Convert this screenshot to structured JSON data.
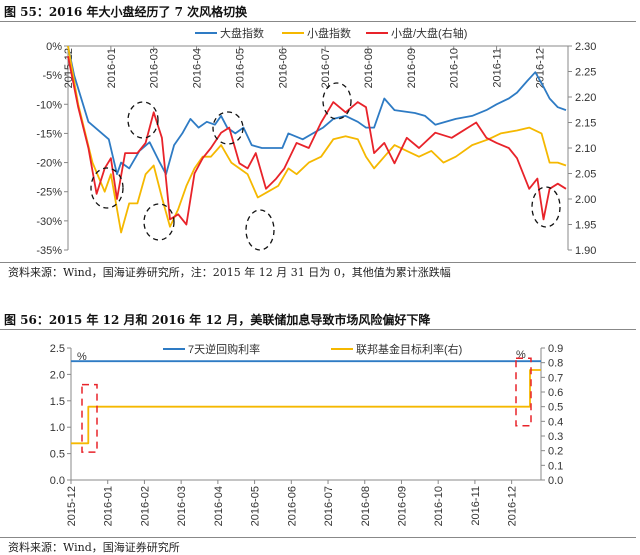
{
  "figure55": {
    "title": "图 55：2016 年大小盘经历了 7 次风格切换",
    "source": "资料来源：Wind，国海证券研究所，注：2015 年 12 月 31 日为 0，其他值为累计涨跌幅"
  },
  "figure56": {
    "title": "图 56：2015 年 12 月和 2016 年 12 月，美联储加息导致市场风险偏好下降",
    "source": "资料来源：Wind，国海证券研究所"
  },
  "chart_data": [
    {
      "type": "line",
      "title": "2016 年大小盘经历了 7 次风格切换",
      "x_unit": "trading day",
      "x_ticks": [
        0,
        21,
        42,
        63,
        84,
        105,
        126,
        147,
        168,
        189,
        210,
        231
      ],
      "x_tick_labels": [
        "2015-12",
        "2016-01",
        "2016-03",
        "2016-04",
        "2016-05",
        "2016-06",
        "2016-07",
        "2016-08",
        "2016-09",
        "2016-10",
        "2016-11",
        "2016-12"
      ],
      "xlim": [
        0,
        245
      ],
      "ylim_left": [
        -35,
        0
      ],
      "y_ticks_left": [
        "0%",
        "-5%",
        "-10%",
        "-15%",
        "-20%",
        "-25%",
        "-30%",
        "-35%"
      ],
      "ylim_right": [
        1.9,
        2.3
      ],
      "y_ticks_right": [
        "2.30",
        "2.25",
        "2.20",
        "2.15",
        "2.10",
        "2.05",
        "2.00",
        "1.95",
        "1.90"
      ],
      "legend": "top-center",
      "series": [
        {
          "name": "大盘指数",
          "axis": "left",
          "color": "#2E7BC4",
          "x": [
            0,
            3,
            10,
            20,
            24,
            26,
            30,
            35,
            40,
            45,
            48,
            52,
            56,
            60,
            64,
            68,
            72,
            75,
            78,
            82,
            86,
            90,
            95,
            105,
            108,
            115,
            120,
            125,
            130,
            136,
            142,
            146,
            150,
            155,
            160,
            170,
            175,
            180,
            190,
            198,
            205,
            210,
            216,
            220,
            225,
            229,
            233,
            236,
            240,
            244
          ],
          "y": [
            0,
            -5,
            -13,
            -16,
            -22,
            -20,
            -21,
            -18,
            -16.5,
            -20,
            -22,
            -17,
            -15,
            -12.5,
            -14,
            -13,
            -13.5,
            -12,
            -14,
            -15,
            -14,
            -17,
            -17.5,
            -17.5,
            -15,
            -16,
            -15,
            -14,
            -12.5,
            -12,
            -13,
            -14,
            -14,
            -9,
            -11,
            -11.5,
            -12,
            -13.5,
            -12.5,
            -12,
            -11,
            -10,
            -9,
            -8,
            -6,
            -4.5,
            -7,
            -9,
            -10.5,
            -11
          ]
        },
        {
          "name": "小盘指数",
          "axis": "left",
          "color": "#F5B800",
          "x": [
            0,
            5,
            12,
            18,
            21,
            26,
            30,
            34,
            38,
            42,
            46,
            50,
            54,
            58,
            62,
            66,
            70,
            75,
            80,
            84,
            88,
            93,
            98,
            103,
            108,
            112,
            118,
            124,
            130,
            136,
            142,
            146,
            150,
            155,
            160,
            166,
            172,
            178,
            184,
            190,
            198,
            206,
            212,
            220,
            226,
            232,
            236,
            240,
            244
          ],
          "y": [
            0,
            -10,
            -20,
            -25,
            -22,
            -32,
            -27,
            -27,
            -22,
            -20.5,
            -26,
            -31,
            -28,
            -24,
            -21,
            -19,
            -19,
            -17,
            -20,
            -21,
            -22,
            -26,
            -25,
            -24,
            -21,
            -22,
            -20,
            -19,
            -16,
            -15.5,
            -16,
            -19,
            -21,
            -19,
            -17,
            -18,
            -19,
            -18,
            -20,
            -19,
            -17,
            -16,
            -15,
            -14.5,
            -14,
            -15,
            -20,
            -20,
            -20.5
          ]
        },
        {
          "name": "小盘/大盘(右轴)",
          "axis": "right",
          "color": "#E8232A",
          "x": [
            0,
            5,
            10,
            14,
            18,
            21,
            24,
            28,
            34,
            38,
            42,
            46,
            50,
            54,
            58,
            62,
            66,
            70,
            75,
            79,
            84,
            88,
            92,
            97,
            102,
            106,
            112,
            118,
            124,
            130,
            136,
            142,
            146,
            150,
            155,
            160,
            166,
            172,
            180,
            188,
            196,
            200,
            205,
            210,
            216,
            220,
            226,
            230,
            233,
            236,
            240,
            244
          ],
          "y": [
            2.28,
            2.18,
            2.1,
            2.01,
            2.06,
            2.08,
            2.0,
            2.09,
            2.09,
            2.11,
            2.17,
            2.12,
            1.96,
            1.97,
            1.95,
            2.05,
            2.08,
            2.1,
            2.13,
            2.14,
            2.07,
            2.06,
            2.09,
            2.02,
            2.04,
            2.06,
            2.11,
            2.1,
            2.15,
            2.19,
            2.17,
            2.19,
            2.18,
            2.09,
            2.11,
            2.07,
            2.12,
            2.1,
            2.13,
            2.12,
            2.14,
            2.15,
            2.12,
            2.11,
            2.1,
            2.08,
            2.02,
            2.04,
            1.96,
            2.02,
            2.03,
            2.02
          ]
        }
      ]
    },
    {
      "type": "line",
      "title": "2015 年 12 月和 2016 年 12 月，美联储加息导致市场风险偏好下降",
      "x_unit": "month",
      "x_tick_labels": [
        "2015-12",
        "2016-01",
        "2016-02",
        "2016-03",
        "2016-04",
        "2016-05",
        "2016-06",
        "2016-07",
        "2016-08",
        "2016-09",
        "2016-10",
        "2016-11",
        "2016-12"
      ],
      "xlim": [
        0,
        12.8
      ],
      "ylim_left": [
        0,
        2.5
      ],
      "y_ticks_left": [
        "2.5",
        "2.0",
        "1.5",
        "1.0",
        "0.5",
        "0.0"
      ],
      "ylim_right": [
        0,
        0.9
      ],
      "y_ticks_right": [
        "0.9",
        "0.8",
        "0.7",
        "0.6",
        "0.5",
        "0.4",
        "0.3",
        "0.2",
        "0.1",
        "0.0"
      ],
      "unit_left": "%",
      "unit_right": "%",
      "legend": "top-center",
      "series": [
        {
          "name": "7天逆回购利率",
          "axis": "left",
          "color": "#2E7BC4",
          "x": [
            0,
            12.8
          ],
          "y": [
            2.25,
            2.25
          ]
        },
        {
          "name": "联邦基金目标利率(右)",
          "axis": "right",
          "color": "#F5B800",
          "x": [
            0,
            0.47,
            0.47,
            12.5,
            12.5,
            12.8
          ],
          "y": [
            0.25,
            0.25,
            0.5,
            0.5,
            0.75,
            0.75
          ]
        }
      ]
    }
  ]
}
